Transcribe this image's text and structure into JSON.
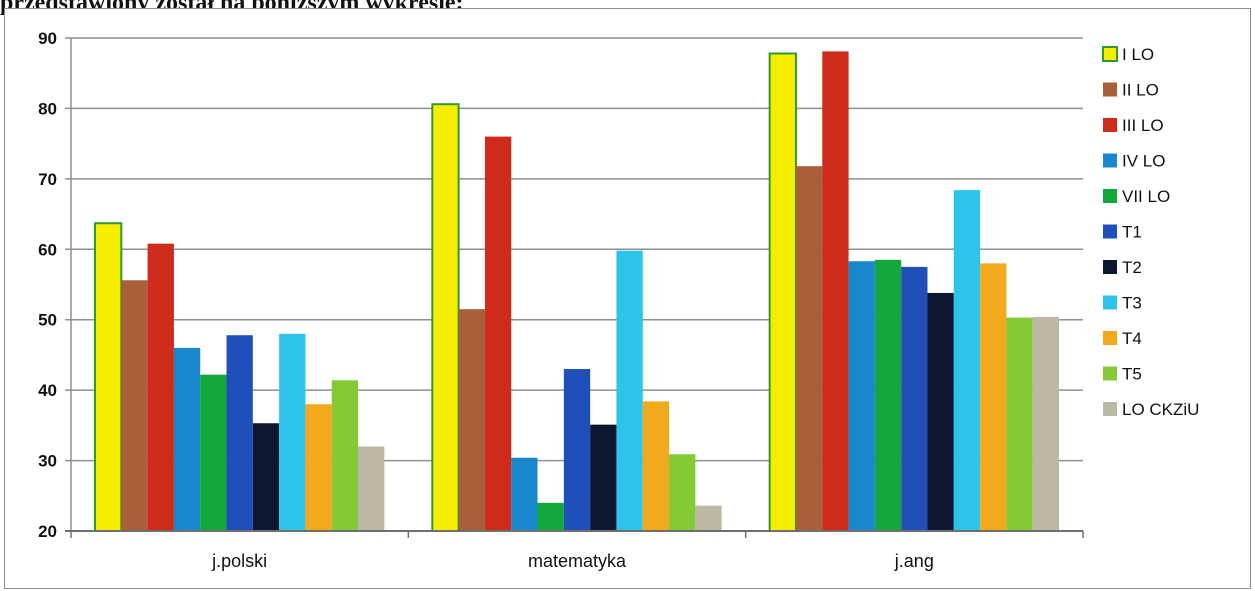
{
  "caption": "przedstawiony został na poniższym wykresie:",
  "chart_data": {
    "type": "bar",
    "title": "",
    "xlabel": "",
    "ylabel": "",
    "ylim": [
      20,
      90
    ],
    "yticks": [
      20,
      30,
      40,
      50,
      60,
      70,
      80,
      90
    ],
    "grid": true,
    "legend_position": "right",
    "categories": [
      "j.polski",
      "matematyka",
      "j.ang"
    ],
    "series": [
      {
        "name": "I LO",
        "color": "#f5ee00",
        "values": [
          63.7,
          80.6,
          87.8
        ]
      },
      {
        "name": "II LO",
        "color": "#a9603a",
        "values": [
          55.6,
          51.5,
          71.8
        ]
      },
      {
        "name": "III LO",
        "color": "#cf2b1b",
        "values": [
          60.8,
          76.0,
          88.1
        ]
      },
      {
        "name": "IV LO",
        "color": "#1a86cb",
        "values": [
          46.0,
          30.4,
          58.3
        ]
      },
      {
        "name": "VII LO",
        "color": "#12a83a",
        "values": [
          42.2,
          24.0,
          58.5
        ]
      },
      {
        "name": "T1",
        "color": "#1f4fb8",
        "values": [
          47.8,
          43.0,
          57.5
        ]
      },
      {
        "name": "T2",
        "color": "#0e1730",
        "values": [
          35.3,
          35.1,
          53.8
        ]
      },
      {
        "name": "T3",
        "color": "#2ec3ea",
        "values": [
          48.0,
          59.8,
          68.4
        ]
      },
      {
        "name": "T4",
        "color": "#f2a91c",
        "values": [
          38.0,
          38.4,
          58.0
        ]
      },
      {
        "name": "T5",
        "color": "#84c936",
        "values": [
          41.4,
          30.9,
          50.3
        ]
      },
      {
        "name": "LO CKZiU",
        "color": "#bdb8a4",
        "values": [
          32.0,
          23.6,
          50.4
        ]
      }
    ]
  }
}
